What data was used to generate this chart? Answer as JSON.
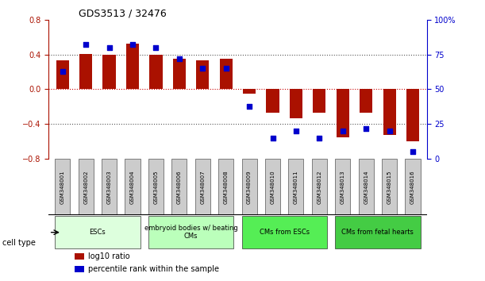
{
  "title": "GDS3513 / 32476",
  "samples": [
    "GSM348001",
    "GSM348002",
    "GSM348003",
    "GSM348004",
    "GSM348005",
    "GSM348006",
    "GSM348007",
    "GSM348008",
    "GSM348009",
    "GSM348010",
    "GSM348011",
    "GSM348012",
    "GSM348013",
    "GSM348014",
    "GSM348015",
    "GSM348016"
  ],
  "log10_ratio": [
    0.33,
    0.41,
    0.4,
    0.52,
    0.4,
    0.35,
    0.33,
    0.35,
    -0.05,
    -0.27,
    -0.33,
    -0.27,
    -0.55,
    -0.27,
    -0.52,
    -0.6
  ],
  "percentile_rank": [
    63,
    82,
    80,
    82,
    80,
    72,
    65,
    65,
    38,
    15,
    20,
    15,
    20,
    22,
    20,
    5
  ],
  "bar_color": "#aa1100",
  "dot_color": "#0000cc",
  "ylim_left": [
    -0.8,
    0.8
  ],
  "ylim_right": [
    0,
    100
  ],
  "yticks_left": [
    -0.8,
    -0.4,
    0,
    0.4,
    0.8
  ],
  "yticks_right": [
    0,
    25,
    50,
    75,
    100
  ],
  "ytick_labels_right": [
    "0",
    "25",
    "50",
    "75",
    "100%"
  ],
  "hline_colors": {
    "dotted": "#555555",
    "zero": "#cc0000"
  },
  "cell_groups": [
    {
      "label": "ESCs",
      "start": 0,
      "end": 3,
      "color": "#ddffdd"
    },
    {
      "label": "embryoid bodies w/ beating\nCMs",
      "start": 4,
      "end": 7,
      "color": "#bbffbb"
    },
    {
      "label": "CMs from ESCs",
      "start": 8,
      "end": 11,
      "color": "#55ee55"
    },
    {
      "label": "CMs from fetal hearts",
      "start": 12,
      "end": 15,
      "color": "#44cc44"
    }
  ],
  "legend_items": [
    {
      "label": "log10 ratio",
      "color": "#aa1100"
    },
    {
      "label": "percentile rank within the sample",
      "color": "#0000cc"
    }
  ],
  "cell_type_label": "cell type",
  "bar_width": 0.55
}
